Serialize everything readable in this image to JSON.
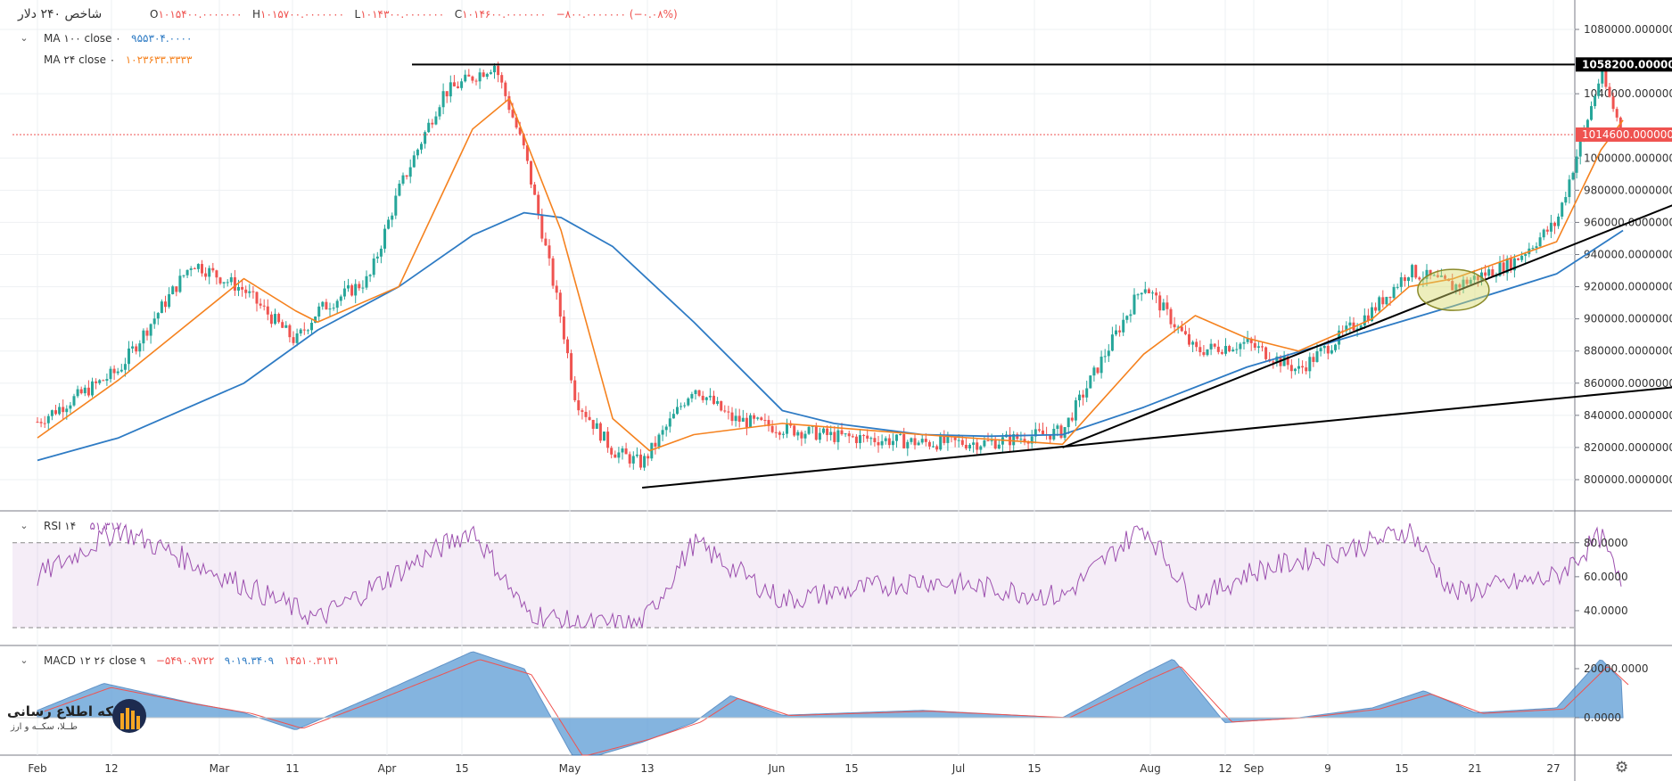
{
  "header": {
    "symbol": "شاخص ۲۴۰ دلار",
    "ohlc": {
      "o_label": "O",
      "o_value": "۱۰۱۵۴۰۰.۰۰۰۰۰۰۰",
      "h_label": "H",
      "h_value": "۱۰۱۵۷۰۰.۰۰۰۰۰۰۰",
      "l_label": "L",
      "l_value": "۱۰۱۴۳۰۰.۰۰۰۰۰۰۰",
      "c_label": "C",
      "c_value": "۱۰۱۴۶۰۰.۰۰۰۰۰۰۰",
      "change": "−۸۰۰.۰۰۰۰۰۰۰ (−۰.۰۸%)"
    }
  },
  "indicators": {
    "ma100": {
      "label": "MA ۱۰۰ close ۰",
      "value": "۹۵۵۳۰۴.۰۰۰۰",
      "color": "#2e7bc4"
    },
    "ma24": {
      "label": "MA ۲۴ close ۰",
      "value": "۱۰۲۳۶۳۳.۳۳۳۳",
      "color": "#f5821f"
    },
    "rsi": {
      "label": "RSI ۱۴",
      "value": "۵۱.۳۱۷۰",
      "color": "#9c4fae"
    },
    "macd": {
      "label": "MACD ۱۲ ۲۶ close ۹",
      "macd": "−۵۴۹۰.۹۷۲۲",
      "signal": "۹۰۱۹.۳۴۰۹",
      "hist": "۱۴۵۱۰.۳۱۳۱"
    }
  },
  "price_axis": {
    "ticks": [
      "1080000.0000000",
      "1040000.0000000",
      "1000000.0000000",
      "980000.0000000",
      "960000.0000000",
      "940000.0000000",
      "920000.0000000",
      "900000.0000000",
      "880000.0000000",
      "860000.0000000",
      "840000.0000000",
      "820000.0000000",
      "800000.0000000"
    ],
    "resistance_label": "1058200.0000000",
    "last_price_label": "1014600.0000000"
  },
  "rsi_axis": {
    "ticks": [
      "80.0000",
      "60.0000",
      "40.0000"
    ]
  },
  "macd_axis": {
    "ticks": [
      "20000.0000",
      "0.0000"
    ]
  },
  "time_axis": [
    "Feb",
    "12",
    "Mar",
    "11",
    "Apr",
    "15",
    "May",
    "13",
    "Jun",
    "15",
    "Jul",
    "15",
    "Aug",
    "12",
    "Sep",
    "9",
    "15",
    "21",
    "27"
  ],
  "watermark": {
    "title": "شبکه اطلاع رسانی",
    "subtitle": "طــلا، سکــه و ارز"
  },
  "colors": {
    "up": "#26a69a",
    "down": "#ef5350",
    "ma100": "#2e7bc4",
    "ma24": "#f5821f",
    "rsi": "#9c4fae",
    "macd_fill": "#5b9bd5",
    "zone": "#aec6ef",
    "trend": "#000000"
  },
  "chart_data": {
    "type": "candlestick",
    "interval": "240",
    "price_ylim": [
      790000,
      1092000
    ],
    "resistance": 1058200,
    "last_price": 1014600,
    "series": [
      {
        "name": "price",
        "x": [
          "Feb 1",
          "Feb 12",
          "Feb 22",
          "Mar 1",
          "Mar 8",
          "Mar 11",
          "Mar 18",
          "Mar 22",
          "Mar 28",
          "Apr 4",
          "Apr 8",
          "Apr 13",
          "Apr 15",
          "Apr 20",
          "Apr 24",
          "May 1",
          "May 6",
          "May 13",
          "May 20",
          "Jun 1",
          "Jun 10",
          "Jun 20",
          "Jul 1",
          "Jul 8",
          "Jul 15",
          "Jul 22",
          "Aug 1",
          "Aug 6",
          "Aug 12",
          "Aug 20",
          "Aug 26",
          "Sep 1",
          "Sep 4"
        ],
        "values": [
          836000,
          868000,
          935000,
          918000,
          886000,
          905000,
          925000,
          980000,
          1040000,
          1058200,
          1005000,
          900000,
          850000,
          818000,
          810000,
          858000,
          838000,
          832000,
          827000,
          823000,
          823000,
          830000,
          922000,
          880000,
          885000,
          868000,
          905000,
          930000,
          920000,
          935000,
          960000,
          1052000,
          1014600
        ]
      },
      {
        "name": "MA 100",
        "x": [
          "Feb 1",
          "Feb 12",
          "Mar 1",
          "Mar 11",
          "Mar 22",
          "Apr 1",
          "Apr 8",
          "Apr 13",
          "Apr 20",
          "May 1",
          "May 13",
          "May 20",
          "Jun 1",
          "Jun 10",
          "Jun 20",
          "Jul 1",
          "Jul 15",
          "Aug 1",
          "Aug 12",
          "Aug 26",
          "Sep 4"
        ],
        "values": [
          812000,
          826000,
          860000,
          893000,
          920000,
          952000,
          966000,
          963000,
          945000,
          898000,
          843000,
          835000,
          828000,
          827000,
          828000,
          845000,
          870000,
          893000,
          908000,
          928000,
          955000
        ]
      },
      {
        "name": "MA 24",
        "x": [
          "Feb 1",
          "Feb 12",
          "Mar 1",
          "Mar 8",
          "Mar 11",
          "Mar 22",
          "Apr 1",
          "Apr 6",
          "Apr 13",
          "Apr 20",
          "Apr 25",
          "May 1",
          "May 13",
          "Jun 1",
          "Jun 20",
          "Jul 1",
          "Jul 8",
          "Jul 15",
          "Jul 22",
          "Aug 1",
          "Aug 6",
          "Aug 12",
          "Aug 26",
          "Sep 1",
          "Sep 4"
        ],
        "values": [
          826000,
          862000,
          925000,
          905000,
          898000,
          920000,
          1018000,
          1037000,
          955000,
          838000,
          818000,
          828000,
          835000,
          828000,
          822000,
          878000,
          902000,
          888000,
          880000,
          900000,
          920000,
          925000,
          948000,
          1005000,
          1023600
        ]
      }
    ],
    "annotations": {
      "trendlines": [
        {
          "from": [
            "Apr 24",
            795000
          ],
          "to": [
            "Sep 12",
            858000
          ]
        },
        {
          "from": [
            "Jun 20",
            820000
          ],
          "to": [
            "Sep 12",
            973000
          ]
        }
      ],
      "zone": {
        "from": "Aug 4",
        "to": "Sep 12",
        "y": [
          940000,
          949000
        ]
      },
      "ellipse_center": [
        "Aug 12",
        918000
      ]
    },
    "rsi": {
      "levels": [
        80,
        30
      ],
      "ylim": [
        30,
        93
      ],
      "x": [
        "Feb 1",
        "Feb 12",
        "Mar 1",
        "Mar 11",
        "Apr 1",
        "Apr 8",
        "Apr 15",
        "Apr 24",
        "May 1",
        "May 13",
        "Jun 1",
        "Jun 20",
        "Jul 1",
        "Jul 8",
        "Jul 15",
        "Aug 1",
        "Aug 6",
        "Aug 12",
        "Aug 26",
        "Sep 1",
        "Sep 4"
      ],
      "values": [
        60,
        88,
        55,
        35,
        88,
        40,
        32,
        32,
        80,
        46,
        58,
        48,
        90,
        45,
        62,
        80,
        88,
        50,
        60,
        84,
        51.317
      ]
    },
    "macd": {
      "ylim": [
        -24000,
        30000
      ],
      "x": [
        "Feb 1",
        "Feb 10",
        "Feb 22",
        "Mar 1",
        "Mar 8",
        "Mar 18",
        "Apr 1",
        "Apr 8",
        "Apr 15",
        "Apr 24",
        "May 1",
        "May 6",
        "May 13",
        "Jun 1",
        "Jun 20",
        "Jul 1",
        "Jul 5",
        "Jul 12",
        "Jul 22",
        "Aug 1",
        "Aug 8",
        "Aug 15",
        "Aug 26",
        "Sep 1",
        "Sep 4"
      ],
      "values": [
        3000,
        14000,
        6000,
        2000,
        -5000,
        8000,
        27000,
        20000,
        -18000,
        -10000,
        -2000,
        9000,
        1000,
        3000,
        0,
        18000,
        24000,
        -2000,
        0,
        4000,
        11000,
        2000,
        4000,
        24000,
        14510.3131
      ]
    }
  }
}
